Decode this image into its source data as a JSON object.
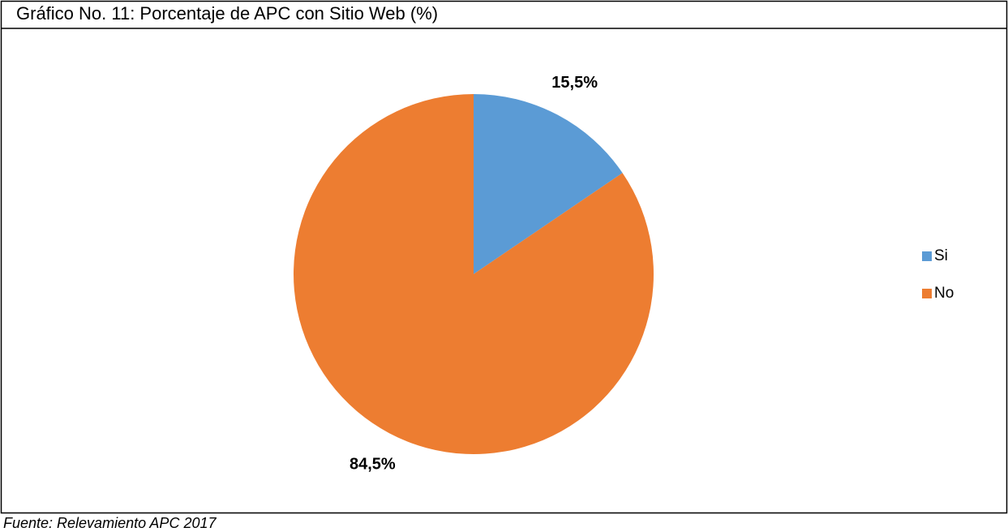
{
  "chart_data": {
    "type": "pie",
    "title": "Gráfico No. 11: Porcentaje de APC con Sitio Web (%)",
    "categories": [
      "Si",
      "No"
    ],
    "values": [
      15.5,
      84.5
    ],
    "value_labels": [
      "15,5%",
      "84,5%"
    ],
    "colors": [
      "#5b9bd5",
      "#ed7d31"
    ],
    "legend": "right",
    "source": "Fuente: Relevamiento APC 2017"
  }
}
